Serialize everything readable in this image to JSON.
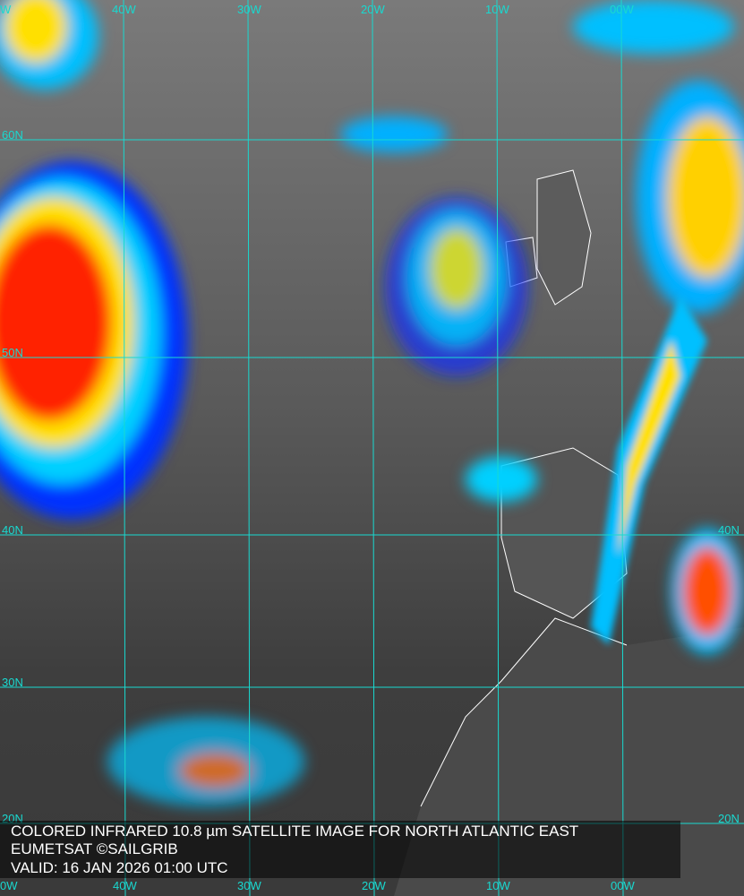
{
  "caption": {
    "line1": "COLORED INFRARED 10.8 µm SATELLITE IMAGE FOR NORTH ATLANTIC EAST",
    "line2": "EUMETSAT ©SAILGRIB",
    "line3": "VALID:  16 JAN 2026 01:00 UTC"
  },
  "grid": {
    "color": "#19d9d0",
    "top_longitudes": [
      "40W",
      "30W",
      "20W",
      "10W",
      "00W"
    ],
    "bottom_longitudes": [
      "0W",
      "40W",
      "30W",
      "20W",
      "10W",
      "00W"
    ],
    "left_latitudes": [
      "60N",
      "50N",
      "40N",
      "30N",
      "20N"
    ],
    "right_latitudes": [
      "40N",
      "20N"
    ],
    "corner_top_left": "W"
  },
  "palette": {
    "cold_top": "#ff1a00",
    "high": "#ffe000",
    "mid": "#00d0ff",
    "low": "#0010ff",
    "coastline": "#ffffff"
  }
}
